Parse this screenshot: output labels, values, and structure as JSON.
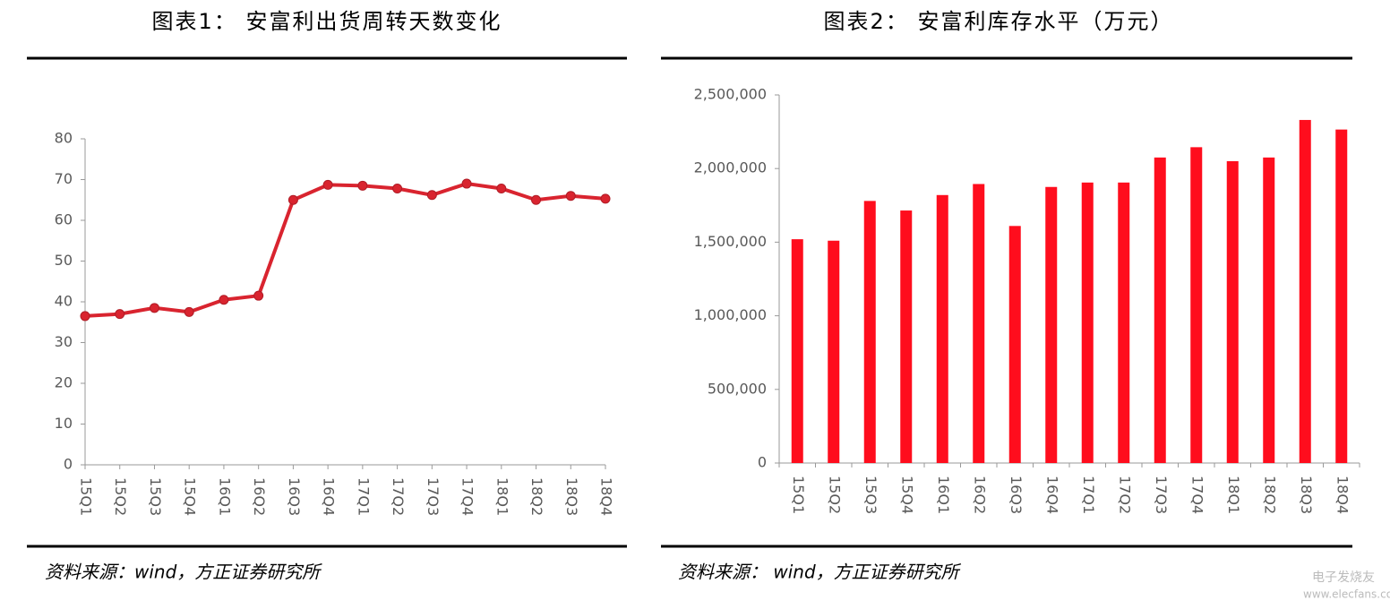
{
  "chart_data": [
    {
      "type": "line",
      "title": "图表1：  安富利出货周转天数变化",
      "note": "资料来源：wind，方正证券研究所",
      "categories": [
        "15Q1",
        "15Q2",
        "15Q3",
        "15Q4",
        "16Q1",
        "16Q2",
        "16Q3",
        "16Q4",
        "17Q1",
        "17Q2",
        "17Q3",
        "17Q4",
        "18Q1",
        "18Q2",
        "18Q3",
        "18Q4"
      ],
      "values": [
        36.5,
        37,
        38.5,
        37.5,
        40.5,
        41.5,
        65,
        68.7,
        68.5,
        67.8,
        66.2,
        69,
        67.8,
        65,
        66,
        65.3
      ],
      "color": "#d9242f",
      "ylim": [
        0,
        80
      ],
      "yticks": [
        0,
        10,
        20,
        30,
        40,
        50,
        60,
        70,
        80
      ],
      "grid": false
    },
    {
      "type": "bar",
      "title": "图表2：  安富利库存水平（万元）",
      "note": "资料来源：  wind，方正证券研究所",
      "categories": [
        "15Q1",
        "15Q2",
        "15Q3",
        "15Q4",
        "16Q1",
        "16Q2",
        "16Q3",
        "16Q4",
        "17Q1",
        "17Q2",
        "17Q3",
        "17Q4",
        "18Q1",
        "18Q2",
        "18Q3",
        "18Q4"
      ],
      "values": [
        1520000,
        1510000,
        1780000,
        1715000,
        1820000,
        1895000,
        1610000,
        1875000,
        1905000,
        1905000,
        2075000,
        2145000,
        2050000,
        2075000,
        2330000,
        2265000
      ],
      "color": "#ff0d1d",
      "ylim": [
        0,
        2500000
      ],
      "yticks": [
        0,
        {
          "value": 500000,
          "label": "500,000"
        },
        {
          "value": 1000000,
          "label": "1,000,000"
        },
        {
          "value": 1500000,
          "label": "1,500,000"
        },
        {
          "value": 2000000,
          "label": "2,000,000"
        },
        {
          "value": 2500000,
          "label": "2,500,000"
        }
      ],
      "grid": false
    }
  ],
  "watermark": {
    "brand": "电子发烧友",
    "url": "www.elecfans.com"
  }
}
